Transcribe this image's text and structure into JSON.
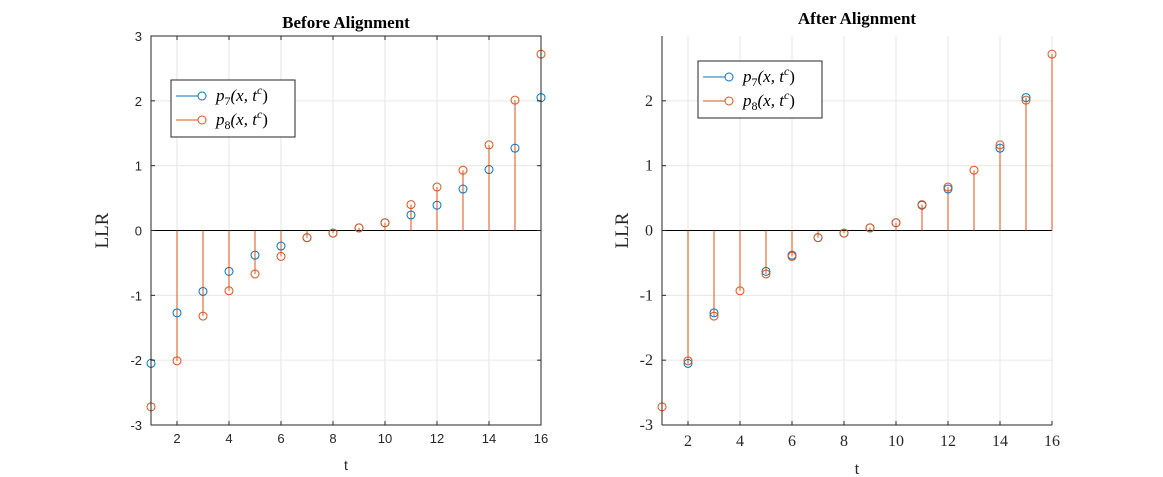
{
  "chart_data": [
    {
      "type": "stem",
      "title": "Before Alignment",
      "xlabel": "t",
      "ylabel": "LLR",
      "xlim": [
        1,
        16
      ],
      "ylim": [
        -3,
        3
      ],
      "xticks": [
        2,
        4,
        6,
        8,
        10,
        12,
        14,
        16
      ],
      "yticks": [
        -3,
        -2,
        -1,
        0,
        1,
        2,
        3
      ],
      "grid": true,
      "legend_position": "top-left",
      "x": [
        1,
        2,
        3,
        4,
        5,
        6,
        7,
        8,
        9,
        10,
        11,
        12,
        13,
        14,
        15,
        16
      ],
      "series": [
        {
          "name": "p7(x,t^c)",
          "label_base": "p",
          "label_sub": "7",
          "label_args": "(x, t",
          "label_sup": "c",
          "label_close": ")",
          "color": "#0072BD",
          "values": [
            -2.05,
            -1.27,
            -0.94,
            -0.63,
            -0.38,
            -0.24,
            -0.11,
            -0.04,
            0.04,
            0.12,
            0.24,
            0.39,
            0.64,
            0.94,
            1.27,
            2.05
          ]
        },
        {
          "name": "p8(x,t^c)",
          "label_base": "p",
          "label_sub": "8",
          "label_args": "(x, t",
          "label_sup": "c",
          "label_close": ")",
          "color": "#D95319",
          "values": [
            -2.72,
            -2.01,
            -1.32,
            -0.93,
            -0.67,
            -0.4,
            -0.11,
            -0.04,
            0.04,
            0.12,
            0.4,
            0.67,
            0.93,
            1.32,
            2.01,
            2.72
          ]
        }
      ]
    },
    {
      "type": "stem",
      "title": "After Alignment",
      "xlabel": "t",
      "ylabel": "LLR",
      "xlim": [
        1,
        16
      ],
      "ylim": [
        -3,
        3
      ],
      "xticks": [
        2,
        4,
        6,
        8,
        10,
        12,
        14,
        16
      ],
      "yticks": [
        -3,
        -2,
        -1,
        0,
        1,
        2
      ],
      "grid": true,
      "legend_position": "top-left",
      "x": [
        1,
        2,
        3,
        4,
        5,
        6,
        7,
        8,
        9,
        10,
        11,
        12,
        13,
        14,
        15,
        16
      ],
      "series": [
        {
          "name": "p7(x,t^c)",
          "label_base": "p",
          "label_sub": "7",
          "label_args": "(x, t",
          "label_sup": "c",
          "label_close": ")",
          "color": "#0072BD",
          "x": [
            2,
            3,
            5,
            6,
            7,
            8,
            9,
            10,
            11,
            12,
            14,
            15
          ],
          "values": [
            -2.05,
            -1.27,
            -0.63,
            -0.38,
            -0.11,
            -0.04,
            0.04,
            0.12,
            0.39,
            0.64,
            1.27,
            2.05
          ]
        },
        {
          "name": "p8(x,t^c)",
          "label_base": "p",
          "label_sub": "8",
          "label_args": "(x, t",
          "label_sup": "c",
          "label_close": ")",
          "color": "#D95319",
          "x": [
            1,
            2,
            3,
            4,
            5,
            6,
            7,
            8,
            9,
            10,
            11,
            12,
            13,
            14,
            15,
            16
          ],
          "values": [
            -2.72,
            -2.01,
            -1.32,
            -0.93,
            -0.67,
            -0.4,
            -0.11,
            -0.04,
            0.04,
            0.12,
            0.4,
            0.67,
            0.93,
            1.32,
            2.01,
            2.72
          ]
        }
      ]
    }
  ]
}
